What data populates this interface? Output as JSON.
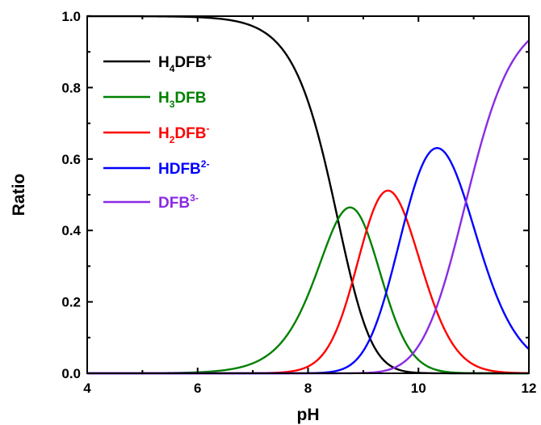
{
  "chart_data": {
    "type": "line",
    "xlabel": "pH",
    "ylabel": "Ratio",
    "xlim": [
      4,
      12
    ],
    "ylim": [
      0,
      1
    ],
    "xticks": [
      "4",
      "6",
      "8",
      "10",
      "12"
    ],
    "yticks": [
      "0.0",
      "0.2",
      "0.4",
      "0.6",
      "0.8",
      "1.0"
    ],
    "grid": false,
    "legend_position": "top-left",
    "pKa": [
      8.54,
      9.06,
      9.77,
      10.86
    ],
    "series": [
      {
        "name": "H4DFB+",
        "base": "H",
        "sub": "4",
        "rest": "DFB",
        "sup": "+",
        "color": "#000000",
        "x": [
          4,
          6,
          7,
          8,
          8.54,
          9,
          10,
          11,
          12
        ],
        "y": [
          1.0,
          0.997,
          0.966,
          0.744,
          0.255,
          0.089,
          0.004,
          0.0,
          0.0
        ]
      },
      {
        "name": "H3DFB",
        "base": "H",
        "sub": "3",
        "rest": "DFB",
        "sup": "",
        "color": "#008000",
        "x": [
          4,
          6,
          7,
          8,
          8.54,
          8.78,
          9,
          9.5,
          10,
          11,
          12
        ],
        "y": [
          0.0,
          0.003,
          0.028,
          0.212,
          0.441,
          0.47,
          0.435,
          0.266,
          0.081,
          0.004,
          0.0
        ]
      },
      {
        "name": "H2DFB-",
        "base": "H",
        "sub": "2",
        "rest": "DFB",
        "sup": "-",
        "color": "#ff0000",
        "x": [
          4,
          7,
          8,
          8.54,
          9,
          9.41,
          10,
          10.5,
          11,
          12
        ],
        "y": [
          0.0,
          0.003,
          0.044,
          0.219,
          0.434,
          0.473,
          0.298,
          0.125,
          0.039,
          0.001
        ]
      },
      {
        "name": "HDFB2-",
        "base": "HDFB",
        "sub": "",
        "rest": "",
        "sup": "2-",
        "color": "#0000ff",
        "x": [
          4,
          8,
          8.54,
          9,
          9.5,
          10,
          10.31,
          10.5,
          11,
          11.5,
          12
        ],
        "y": [
          0.0,
          0.002,
          0.013,
          0.075,
          0.216,
          0.508,
          0.663,
          0.652,
          0.484,
          0.23,
          0.071
        ]
      },
      {
        "name": "DFB3-",
        "base": "DFB",
        "sub": "",
        "rest": "",
        "sup": "3-",
        "color": "#8a2be2",
        "x": [
          4,
          9,
          9.5,
          10,
          10.5,
          11,
          11.5,
          12
        ],
        "y": [
          0.0,
          0.001,
          0.011,
          0.07,
          0.208,
          0.459,
          0.753,
          0.928
        ]
      }
    ]
  }
}
